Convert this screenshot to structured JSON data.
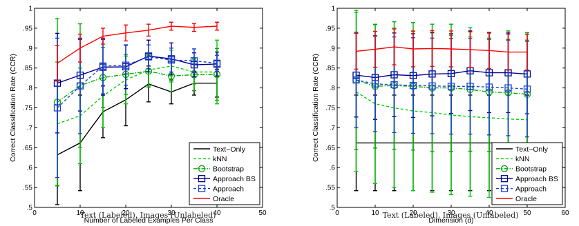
{
  "chart_data": [
    {
      "type": "line",
      "xlabel": "Number of Labeled Examples Per Class",
      "ylabel": "Correct Classification Rate (CCR)",
      "xlim": [
        0,
        50
      ],
      "ylim": [
        0.5,
        1
      ],
      "xticks": [
        0,
        10,
        20,
        30,
        40,
        50
      ],
      "yticks": [
        0.5,
        0.55,
        0.6,
        0.65,
        0.7,
        0.75,
        0.8,
        0.85,
        0.9,
        0.95,
        1
      ],
      "grid": false,
      "legend_position": "bottom-right",
      "caption": "Text (Labeled), Images (Unlabeled)",
      "x": [
        5,
        10,
        15,
        20,
        25,
        30,
        35,
        40
      ],
      "series": [
        {
          "name": "Text−Only",
          "color": "#000000",
          "dash": "solid",
          "marker": "none",
          "values": [
            0.632,
            0.662,
            0.74,
            0.77,
            0.81,
            0.79,
            0.812,
            0.812
          ],
          "err": [
            0.125,
            0.12,
            0.065,
            0.065,
            0.045,
            0.03,
            0.03,
            0.035
          ]
        },
        {
          "name": "kNN",
          "color": "#00cc00",
          "dash": "dashed",
          "marker": "none",
          "values": [
            0.71,
            0.73,
            0.78,
            0.82,
            0.845,
            0.855,
            0.84,
            0.84
          ],
          "err": [
            0.155,
            0.12,
            0.08,
            0.06,
            0.04,
            0.04,
            0.03,
            0.08
          ]
        },
        {
          "name": "Bootstrap",
          "color": "#00aa00",
          "dash": "dashdot",
          "marker": "circle",
          "values": [
            0.764,
            0.806,
            0.826,
            0.834,
            0.842,
            0.83,
            0.833,
            0.834
          ],
          "err": [
            0.21,
            0.155,
            0.075,
            0.05,
            0.04,
            0.04,
            0.04,
            0.065
          ]
        },
        {
          "name": "Approach BS",
          "color": "#00008b",
          "dash": "solid",
          "marker": "square",
          "values": [
            0.812,
            0.832,
            0.852,
            0.853,
            0.88,
            0.873,
            0.858,
            0.86
          ],
          "err": [
            0.125,
            0.09,
            0.07,
            0.055,
            0.04,
            0.04,
            0.03,
            0.03
          ]
        },
        {
          "name": "Approach",
          "color": "#1a3fd9",
          "dash": "dashed",
          "marker": "square",
          "values": [
            0.75,
            0.805,
            0.855,
            0.857,
            0.878,
            0.87,
            0.868,
            0.862
          ],
          "err": [
            0.175,
            0.12,
            0.07,
            0.05,
            0.03,
            0.03,
            0.03,
            0.02
          ]
        },
        {
          "name": "Oracle",
          "color": "#ff0000",
          "dash": "solid",
          "marker": "none",
          "values": [
            0.862,
            0.9,
            0.93,
            0.938,
            0.945,
            0.955,
            0.952,
            0.955
          ],
          "err": [
            0.045,
            0.035,
            0.02,
            0.02,
            0.015,
            0.01,
            0.01,
            0.01
          ]
        }
      ]
    },
    {
      "type": "line",
      "xlabel": "Dimension (d)",
      "ylabel": "Correct Classification Rate (CCR)",
      "xlim": [
        0,
        60
      ],
      "ylim": [
        0.5,
        1
      ],
      "xticks": [
        0,
        10,
        20,
        30,
        40,
        50,
        60
      ],
      "yticks": [
        0.5,
        0.55,
        0.6,
        0.65,
        0.7,
        0.75,
        0.8,
        0.85,
        0.9,
        0.95,
        1
      ],
      "grid": false,
      "legend_position": "bottom-right",
      "caption": "Text (Labeled), Images (Unlabeled)",
      "x": [
        5,
        10,
        15,
        20,
        25,
        30,
        35,
        40,
        45,
        50
      ],
      "series": [
        {
          "name": "Text−Only",
          "color": "#000000",
          "dash": "solid",
          "marker": "none",
          "values": [
            0.662,
            0.662,
            0.662,
            0.662,
            0.662,
            0.662,
            0.662,
            0.662,
            0.662,
            0.662
          ],
          "err": [
            0.12,
            0.12,
            0.12,
            0.12,
            0.12,
            0.12,
            0.12,
            0.12,
            0.12,
            0.12
          ]
        },
        {
          "name": "kNN",
          "color": "#00cc00",
          "dash": "dashed",
          "marker": "none",
          "values": [
            0.79,
            0.76,
            0.75,
            0.742,
            0.738,
            0.732,
            0.728,
            0.725,
            0.722,
            0.72
          ],
          "err": [
            0.2,
            0.2,
            0.2,
            0.2,
            0.2,
            0.2,
            0.2,
            0.2,
            0.2,
            0.2
          ]
        },
        {
          "name": "Bootstrap",
          "color": "#00aa00",
          "dash": "dashdot",
          "marker": "circle",
          "values": [
            0.82,
            0.804,
            0.806,
            0.804,
            0.8,
            0.8,
            0.796,
            0.79,
            0.788,
            0.784
          ],
          "err": [
            0.175,
            0.155,
            0.16,
            0.16,
            0.16,
            0.16,
            0.155,
            0.15,
            0.155,
            0.155
          ]
        },
        {
          "name": "Approach BS",
          "color": "#00008b",
          "dash": "solid",
          "marker": "square",
          "values": [
            0.832,
            0.826,
            0.833,
            0.831,
            0.835,
            0.836,
            0.843,
            0.838,
            0.838,
            0.835
          ],
          "err": [
            0.105,
            0.105,
            0.105,
            0.105,
            0.105,
            0.1,
            0.1,
            0.1,
            0.1,
            0.1
          ]
        },
        {
          "name": "Approach",
          "color": "#1a3fd9",
          "dash": "dashed",
          "marker": "square",
          "values": [
            0.82,
            0.81,
            0.808,
            0.806,
            0.805,
            0.804,
            0.804,
            0.802,
            0.8,
            0.797
          ],
          "err": [
            0.12,
            0.12,
            0.12,
            0.12,
            0.12,
            0.12,
            0.12,
            0.12,
            0.12,
            0.12
          ]
        },
        {
          "name": "Oracle",
          "color": "#ff0000",
          "dash": "solid",
          "marker": "none",
          "values": [
            0.892,
            0.897,
            0.903,
            0.898,
            0.899,
            0.898,
            0.896,
            0.894,
            0.89,
            0.89
          ],
          "err": [
            0.045,
            0.045,
            0.045,
            0.045,
            0.045,
            0.045,
            0.045,
            0.045,
            0.045,
            0.045
          ]
        }
      ]
    }
  ]
}
